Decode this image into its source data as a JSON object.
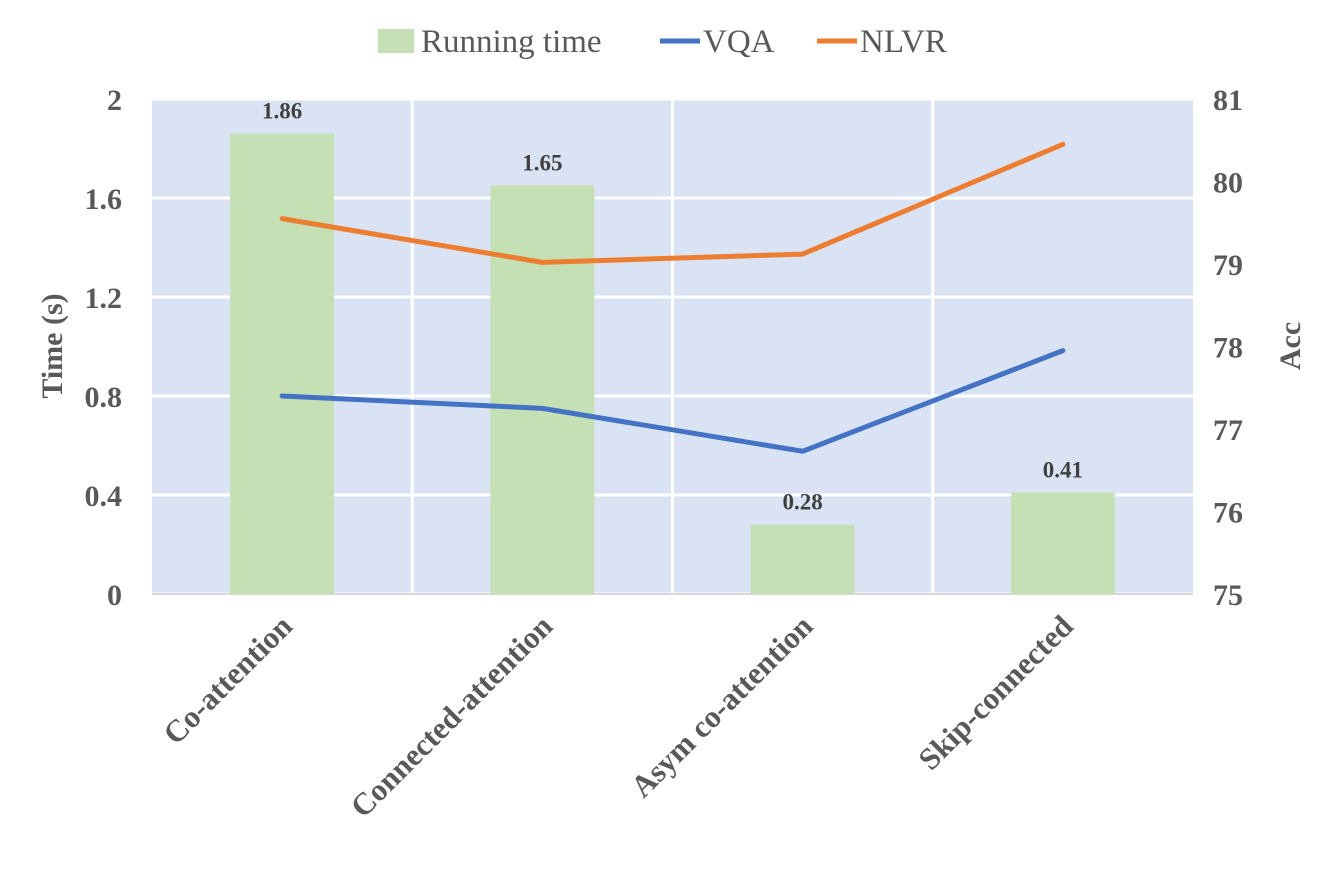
{
  "chart_data": {
    "type": "bar",
    "categories": [
      "Co-attention",
      "Connected-attention",
      "Asym co-attention",
      "Skip-connected"
    ],
    "bar_series": {
      "name": "Running time",
      "values": [
        1.86,
        1.65,
        0.28,
        0.41
      ],
      "labels": [
        "1.86",
        "1.65",
        "0.28",
        "0.41"
      ],
      "axis": "left",
      "color": "#c5e0b4"
    },
    "line_series": [
      {
        "name": "VQA",
        "values": [
          77.4,
          77.25,
          76.73,
          77.95
        ],
        "axis": "right",
        "color": "#4472c4"
      },
      {
        "name": "NLVR",
        "values": [
          79.55,
          79.02,
          79.12,
          80.45
        ],
        "axis": "right",
        "color": "#ed7d31"
      }
    ],
    "ylabel": "Time (s)",
    "y2label": "Acc",
    "ylim": [
      0,
      2
    ],
    "y2lim": [
      75,
      81
    ],
    "yticks": [
      "0",
      "0.4",
      "0.8",
      "1.2",
      "1.6",
      "2"
    ],
    "y2ticks": [
      "75",
      "76",
      "77",
      "78",
      "79",
      "80",
      "81"
    ],
    "legend_position": "top",
    "plot_background": "#dae3f3",
    "grid": true
  }
}
